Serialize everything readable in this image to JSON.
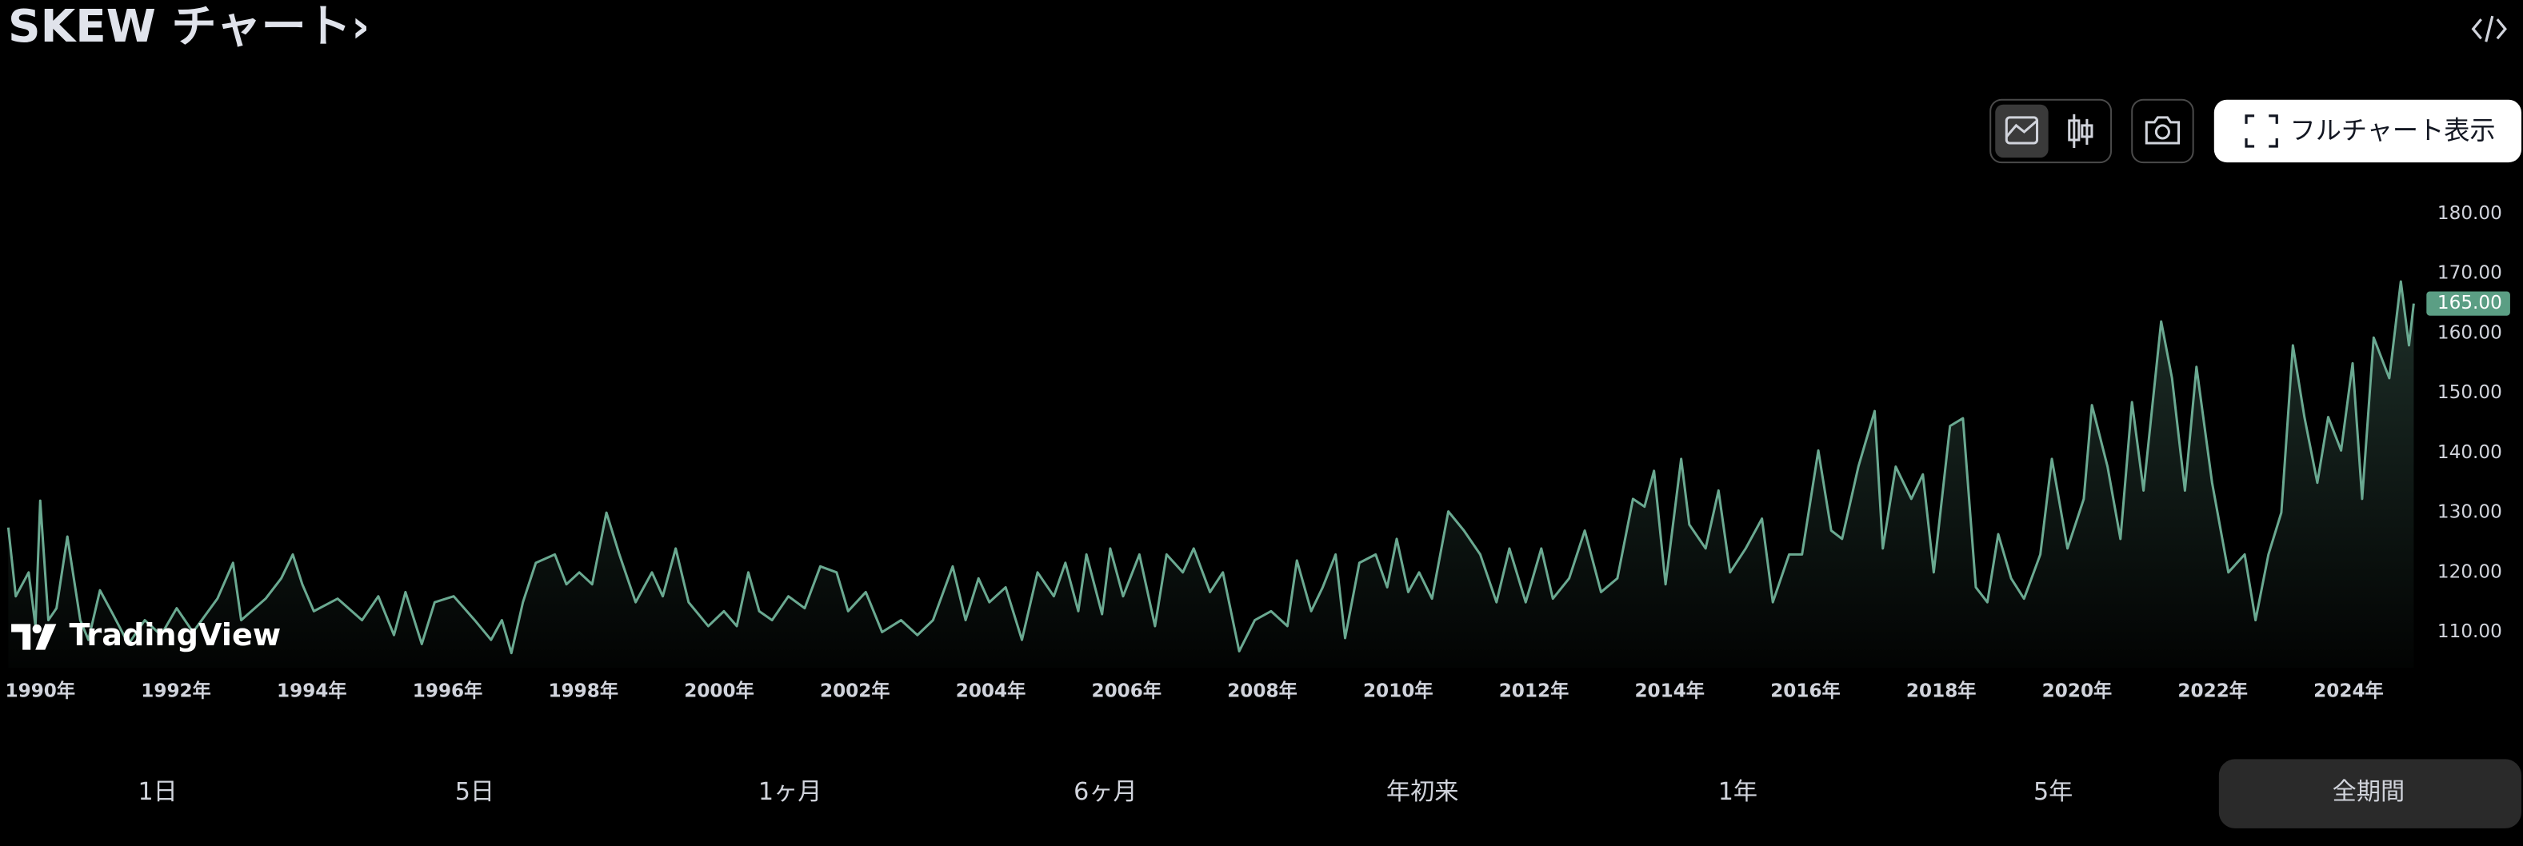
{
  "header": {
    "title": "SKEW チャート›"
  },
  "toolbar": {
    "fullchart_button": "フルチャート表示"
  },
  "watermark": "TradingView",
  "chart_data": {
    "type": "area",
    "color": "#6aa991",
    "grid": false,
    "x": [
      1989.53,
      1989.64,
      1989.83,
      1989.93,
      1990.0,
      1990.12,
      1990.24,
      1990.4,
      1990.59,
      1990.71,
      1990.88,
      1991.07,
      1991.3,
      1991.54,
      1991.78,
      1992.01,
      1992.25,
      1992.61,
      1992.84,
      1992.96,
      1993.32,
      1993.55,
      1993.72,
      1993.86,
      1994.03,
      1994.38,
      1994.74,
      1994.98,
      1995.21,
      1995.38,
      1995.62,
      1995.81,
      1996.09,
      1996.4,
      1996.64,
      1996.8,
      1996.94,
      1997.11,
      1997.3,
      1997.58,
      1997.75,
      1997.94,
      1998.13,
      1998.34,
      1998.53,
      1998.77,
      1999.01,
      1999.17,
      1999.36,
      1999.55,
      1999.84,
      2000.07,
      2000.26,
      2000.43,
      2000.59,
      2000.78,
      2001.02,
      2001.26,
      2001.49,
      2001.73,
      2001.9,
      2002.16,
      2002.4,
      2002.68,
      2002.92,
      2003.15,
      2003.44,
      2003.63,
      2003.82,
      2003.98,
      2004.22,
      2004.46,
      2004.69,
      2004.93,
      2005.1,
      2005.29,
      2005.41,
      2005.64,
      2005.76,
      2005.95,
      2006.19,
      2006.42,
      2006.59,
      2006.83,
      2006.99,
      2007.23,
      2007.42,
      2007.66,
      2007.89,
      2008.13,
      2008.37,
      2008.51,
      2008.72,
      2008.89,
      2009.08,
      2009.22,
      2009.43,
      2009.67,
      2009.84,
      2009.98,
      2010.15,
      2010.31,
      2010.5,
      2010.74,
      2010.97,
      2011.21,
      2011.45,
      2011.64,
      2011.88,
      2012.11,
      2012.28,
      2012.52,
      2012.75,
      2012.99,
      2013.23,
      2013.46,
      2013.63,
      2013.77,
      2013.94,
      2014.17,
      2014.29,
      2014.53,
      2014.72,
      2014.89,
      2015.12,
      2015.36,
      2015.52,
      2015.76,
      2015.95,
      2016.19,
      2016.38,
      2016.54,
      2016.78,
      2017.02,
      2017.14,
      2017.33,
      2017.56,
      2017.73,
      2017.89,
      2018.13,
      2018.32,
      2018.51,
      2018.68,
      2018.84,
      2019.03,
      2019.22,
      2019.46,
      2019.63,
      2019.86,
      2020.1,
      2020.22,
      2020.45,
      2020.64,
      2020.81,
      2020.98,
      2021.24,
      2021.4,
      2021.59,
      2021.76,
      2021.99,
      2022.23,
      2022.47,
      2022.63,
      2022.82,
      2023.01,
      2023.18,
      2023.35,
      2023.54,
      2023.7,
      2023.89,
      2024.06,
      2024.2,
      2024.37,
      2024.6,
      2024.77,
      2024.89,
      2024.96
    ],
    "values": [
      127.5,
      116,
      120,
      111,
      132,
      112,
      114,
      126,
      112,
      108.7,
      117,
      113,
      108,
      112,
      109.5,
      114,
      110,
      115.6,
      121.6,
      112,
      115.6,
      119,
      123,
      118,
      113.5,
      115.6,
      112,
      116,
      109.5,
      116.7,
      108,
      115,
      116,
      112,
      108.7,
      112,
      106.5,
      115,
      121.6,
      123,
      118,
      120,
      118,
      130,
      123,
      115,
      120,
      116,
      124,
      115,
      111,
      113.5,
      111,
      120,
      113.5,
      112,
      116,
      114,
      121,
      120,
      113.5,
      116.7,
      110,
      112,
      109.5,
      112,
      121,
      112,
      119,
      115,
      117.5,
      108.7,
      120,
      116,
      121.6,
      113.5,
      123,
      113,
      124,
      116,
      123,
      111,
      123,
      120,
      124,
      116.7,
      120,
      106.8,
      112,
      113.5,
      111,
      122,
      113.5,
      117.5,
      123,
      109,
      121.6,
      123,
      117.5,
      125.6,
      116.7,
      120,
      115.6,
      130.2,
      127,
      123,
      115,
      124,
      115,
      124,
      115.6,
      119,
      127,
      116.7,
      119,
      132.3,
      131,
      137,
      118,
      139,
      128,
      124,
      133.7,
      120,
      124,
      129,
      115,
      123,
      123,
      140.4,
      127,
      125.6,
      137.7,
      147,
      124,
      137.7,
      132.3,
      136.4,
      120,
      144.5,
      145.8,
      117.5,
      115,
      126.4,
      119,
      115.6,
      123,
      139,
      124,
      132.3,
      148,
      137.7,
      125.6,
      148.5,
      133.7,
      162,
      152.5,
      133.7,
      154.4,
      135,
      120,
      123,
      112,
      123,
      130,
      158,
      146,
      135,
      146,
      140.4,
      155,
      132.3,
      159.3,
      152.5,
      168.7,
      158,
      165
    ],
    "value_labels": [
      null,
      null,
      null,
      null,
      null,
      null,
      null,
      null,
      null,
      null,
      null,
      null,
      null,
      null,
      null,
      null,
      null,
      null,
      null,
      null,
      null,
      null,
      null,
      null,
      null,
      null,
      null,
      null,
      null,
      null,
      null,
      null,
      null,
      null,
      null,
      null,
      null,
      null,
      null,
      null,
      null,
      null,
      null,
      null,
      null,
      null,
      null,
      null,
      null,
      null,
      null,
      null,
      null,
      null,
      null,
      null,
      null,
      null,
      null,
      null,
      null,
      null,
      null,
      null,
      null,
      null,
      null,
      null,
      null,
      null,
      null,
      null,
      null,
      null,
      null,
      null,
      null,
      null,
      null,
      null,
      null,
      null,
      null,
      null,
      null,
      null,
      null,
      null,
      null,
      null,
      null,
      null,
      null,
      null,
      null,
      null,
      null,
      null,
      null,
      null,
      null,
      null,
      null,
      null,
      null,
      null,
      null,
      null,
      null,
      null,
      null,
      null,
      null,
      null,
      null,
      null,
      null,
      null,
      null,
      null,
      null,
      null,
      null,
      null,
      null,
      null,
      null,
      null,
      null,
      null,
      null,
      null,
      null,
      null,
      null,
      null,
      null,
      null,
      null,
      null,
      null,
      null,
      null,
      null,
      null,
      null,
      null,
      null,
      null,
      null,
      null,
      null,
      null,
      null,
      null,
      null,
      null,
      null,
      null,
      null,
      null,
      null,
      null,
      null,
      null,
      null,
      null,
      null,
      null,
      null,
      null,
      null,
      null,
      null,
      null,
      null,
      "165.00"
    ],
    "xlim": [
      1989.5,
      2025.1
    ],
    "ylim": [
      104,
      188
    ],
    "xticks": [
      {
        "value": 1990,
        "label": "1990年"
      },
      {
        "value": 1992,
        "label": "1992年"
      },
      {
        "value": 1994,
        "label": "1994年"
      },
      {
        "value": 1996,
        "label": "1996年"
      },
      {
        "value": 1998,
        "label": "1998年"
      },
      {
        "value": 2000,
        "label": "2000年"
      },
      {
        "value": 2002,
        "label": "2002年"
      },
      {
        "value": 2004,
        "label": "2004年"
      },
      {
        "value": 2006,
        "label": "2006年"
      },
      {
        "value": 2008,
        "label": "2008年"
      },
      {
        "value": 2010,
        "label": "2010年"
      },
      {
        "value": 2012,
        "label": "2012年"
      },
      {
        "value": 2014,
        "label": "2014年"
      },
      {
        "value": 2016,
        "label": "2016年"
      },
      {
        "value": 2018,
        "label": "2018年"
      },
      {
        "value": 2020,
        "label": "2020年"
      },
      {
        "value": 2022,
        "label": "2022年"
      },
      {
        "value": 2024,
        "label": "2024年"
      }
    ],
    "yticks": [
      {
        "value": 110,
        "label": "110.00"
      },
      {
        "value": 120,
        "label": "120.00"
      },
      {
        "value": 130,
        "label": "130.00"
      },
      {
        "value": 140,
        "label": "140.00"
      },
      {
        "value": 150,
        "label": "150.00"
      },
      {
        "value": 160,
        "label": "160.00"
      },
      {
        "value": 170,
        "label": "170.00"
      },
      {
        "value": 180,
        "label": "180.00"
      }
    ]
  },
  "range_buttons": [
    "1日",
    "5日",
    "1ヶ月",
    "6ヶ月",
    "年初来",
    "1年",
    "5年",
    "全期間"
  ]
}
